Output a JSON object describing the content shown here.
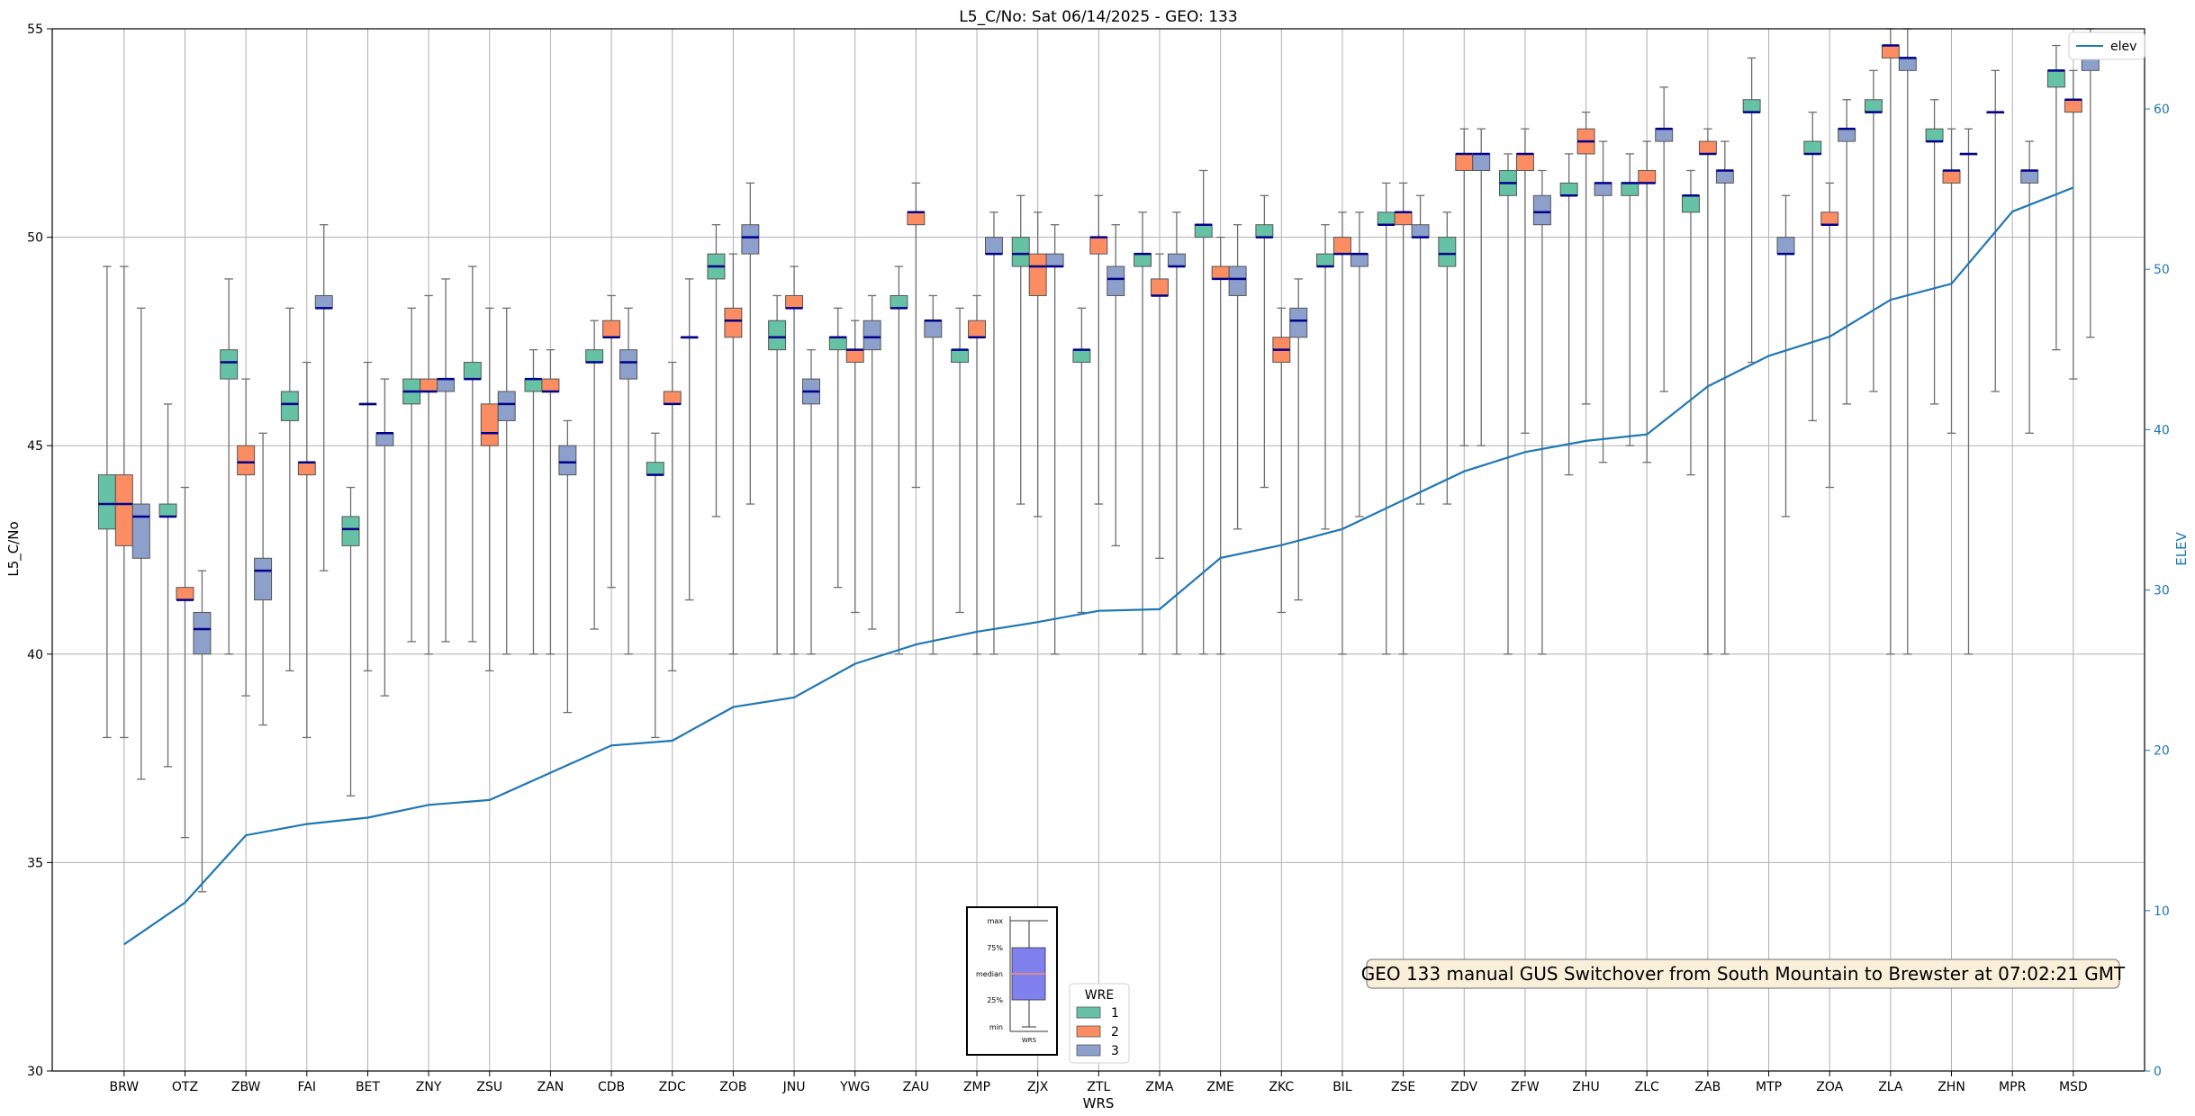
{
  "chart_data": {
    "type": "box",
    "title": "L5_C/No: Sat 06/14/2025 - GEO: 133",
    "xlabel": "WRS",
    "ylabel": "L5_C/No",
    "y2label": "ELEV",
    "ylim": [
      30,
      55
    ],
    "y2lim": [
      0,
      65
    ],
    "yticks": [
      30,
      35,
      40,
      45,
      50,
      55
    ],
    "y2ticks": [
      0,
      10,
      20,
      30,
      40,
      50,
      60
    ],
    "grid": true,
    "categories": [
      "BRW",
      "OTZ",
      "ZBW",
      "FAI",
      "BET",
      "ZNY",
      "ZSU",
      "ZAN",
      "CDB",
      "ZDC",
      "ZOB",
      "JNU",
      "YWG",
      "ZAU",
      "ZMP",
      "ZJX",
      "ZTL",
      "ZMA",
      "ZME",
      "ZKC",
      "BIL",
      "ZSE",
      "ZDV",
      "ZFW",
      "ZHU",
      "ZLC",
      "ZAB",
      "MTP",
      "ZOA",
      "ZLA",
      "ZHN",
      "MPR",
      "MSD"
    ],
    "colors": {
      "1": "#66c2a5",
      "2": "#fc8d62",
      "3": "#8da0cb",
      "median": "#00008b",
      "elev": "#1f77b4",
      "grid": "#b0b0b0",
      "whisker": "#6e6e6e"
    },
    "legend": {
      "title": "WRE",
      "entries": [
        "1",
        "2",
        "3"
      ],
      "placement": "bottom-center"
    },
    "elev_legend": {
      "label": "elev",
      "placement": "top-right"
    },
    "series": [
      {
        "wre": "1",
        "boxes": [
          {
            "cat": "BRW",
            "whislo": 38,
            "q1": 43,
            "med": 43.6,
            "q3": 44.3,
            "whishi": 49.3
          },
          {
            "cat": "OTZ",
            "whislo": 37.3,
            "q1": 43.3,
            "med": 43.3,
            "q3": 43.6,
            "whishi": 46
          },
          {
            "cat": "ZBW",
            "whislo": 40,
            "q1": 46.6,
            "med": 47,
            "q3": 47.3,
            "whishi": 49
          },
          {
            "cat": "FAI",
            "whislo": 39.6,
            "q1": 45.6,
            "med": 46,
            "q3": 46.3,
            "whishi": 48.3
          },
          {
            "cat": "BET",
            "whislo": 36.6,
            "q1": 42.6,
            "med": 43,
            "q3": 43.3,
            "whishi": 44
          },
          {
            "cat": "ZNY",
            "whislo": 40.3,
            "q1": 46,
            "med": 46.3,
            "q3": 46.6,
            "whishi": 48.3
          },
          {
            "cat": "ZSU",
            "whislo": 40.3,
            "q1": 46.6,
            "med": 46.6,
            "q3": 47,
            "whishi": 49.3
          },
          {
            "cat": "ZAN",
            "whislo": 40,
            "q1": 46.3,
            "med": 46.6,
            "q3": 46.6,
            "whishi": 47.3
          },
          {
            "cat": "CDB",
            "whislo": 40.6,
            "q1": 47,
            "med": 47,
            "q3": 47.3,
            "whishi": 48
          },
          {
            "cat": "ZDC",
            "whislo": 38,
            "q1": 44.3,
            "med": 44.3,
            "q3": 44.6,
            "whishi": 45.3
          },
          {
            "cat": "ZOB",
            "whislo": 43.3,
            "q1": 49,
            "med": 49.3,
            "q3": 49.6,
            "whishi": 50.3
          },
          {
            "cat": "JNU",
            "whislo": 40,
            "q1": 47.3,
            "med": 47.6,
            "q3": 48,
            "whishi": 48.6
          },
          {
            "cat": "YWG",
            "whislo": 41.6,
            "q1": 47.3,
            "med": 47.6,
            "q3": 47.6,
            "whishi": 48.3
          },
          {
            "cat": "ZAU",
            "whislo": 40,
            "q1": 48.3,
            "med": 48.3,
            "q3": 48.6,
            "whishi": 49.3
          },
          {
            "cat": "ZMP",
            "whislo": 41,
            "q1": 47,
            "med": 47.3,
            "q3": 47.3,
            "whishi": 48.3
          },
          {
            "cat": "ZJX",
            "whislo": 43.6,
            "q1": 49.3,
            "med": 49.6,
            "q3": 50,
            "whishi": 51
          },
          {
            "cat": "ZTL",
            "whislo": 41,
            "q1": 47,
            "med": 47.3,
            "q3": 47.3,
            "whishi": 48.3
          },
          {
            "cat": "ZMA",
            "whislo": 40,
            "q1": 49.3,
            "med": 49.6,
            "q3": 49.6,
            "whishi": 50.6
          },
          {
            "cat": "ZME",
            "whislo": 40,
            "q1": 50,
            "med": 50.3,
            "q3": 50.3,
            "whishi": 51.6
          },
          {
            "cat": "ZKC",
            "whislo": 44,
            "q1": 50,
            "med": 50,
            "q3": 50.3,
            "whishi": 51
          },
          {
            "cat": "BIL",
            "whislo": 43,
            "q1": 49.3,
            "med": 49.3,
            "q3": 49.6,
            "whishi": 50.3
          },
          {
            "cat": "ZSE",
            "whislo": 40,
            "q1": 50.3,
            "med": 50.3,
            "q3": 50.6,
            "whishi": 51.3
          },
          {
            "cat": "ZDV",
            "whislo": 43.6,
            "q1": 49.3,
            "med": 49.6,
            "q3": 50,
            "whishi": 50.6
          },
          {
            "cat": "ZFW",
            "whislo": 40,
            "q1": 51,
            "med": 51.3,
            "q3": 51.6,
            "whishi": 52
          },
          {
            "cat": "ZHU",
            "whislo": 44.3,
            "q1": 51,
            "med": 51,
            "q3": 51.3,
            "whishi": 52
          },
          {
            "cat": "ZLC",
            "whislo": 45,
            "q1": 51,
            "med": 51.3,
            "q3": 51.3,
            "whishi": 52
          },
          {
            "cat": "ZAB",
            "whislo": 44.3,
            "q1": 50.6,
            "med": 51,
            "q3": 51,
            "whishi": 51.6
          },
          {
            "cat": "MTP",
            "whislo": 47,
            "q1": 53,
            "med": 53,
            "q3": 53.3,
            "whishi": 54.3
          },
          {
            "cat": "ZOA",
            "whislo": 45.6,
            "q1": 52,
            "med": 52,
            "q3": 52.3,
            "whishi": 53
          },
          {
            "cat": "ZLA",
            "whislo": 46.3,
            "q1": 53,
            "med": 53,
            "q3": 53.3,
            "whishi": 54
          },
          {
            "cat": "ZHN",
            "whislo": 46,
            "q1": 52.3,
            "med": 52.3,
            "q3": 52.6,
            "whishi": 53.3
          },
          {
            "cat": "MPR",
            "whislo": 46.3,
            "q1": 53,
            "med": 53,
            "q3": 53,
            "whishi": 54
          },
          {
            "cat": "MSD",
            "whislo": 47.3,
            "q1": 53.6,
            "med": 54,
            "q3": 54,
            "whishi": 54.6
          }
        ]
      },
      {
        "wre": "2",
        "boxes": [
          {
            "cat": "BRW",
            "whislo": 38,
            "q1": 42.6,
            "med": 43.6,
            "q3": 44.3,
            "whishi": 49.3
          },
          {
            "cat": "OTZ",
            "whislo": 35.6,
            "q1": 41.3,
            "med": 41.3,
            "q3": 41.6,
            "whishi": 44
          },
          {
            "cat": "ZBW",
            "whislo": 39,
            "q1": 44.3,
            "med": 44.6,
            "q3": 45,
            "whishi": 46.6
          },
          {
            "cat": "FAI",
            "whislo": 38,
            "q1": 44.3,
            "med": 44.6,
            "q3": 44.6,
            "whishi": 47
          },
          {
            "cat": "BET",
            "whislo": 39.6,
            "q1": 46,
            "med": 46,
            "q3": 46,
            "whishi": 47
          },
          {
            "cat": "ZNY",
            "whislo": 40,
            "q1": 46.3,
            "med": 46.3,
            "q3": 46.6,
            "whishi": 48.6
          },
          {
            "cat": "ZSU",
            "whislo": 39.6,
            "q1": 45,
            "med": 45.3,
            "q3": 46,
            "whishi": 48.3
          },
          {
            "cat": "ZAN",
            "whislo": 40,
            "q1": 46.3,
            "med": 46.3,
            "q3": 46.6,
            "whishi": 47.3
          },
          {
            "cat": "CDB",
            "whislo": 41.6,
            "q1": 47.6,
            "med": 47.6,
            "q3": 48,
            "whishi": 48.6
          },
          {
            "cat": "ZDC",
            "whislo": 39.6,
            "q1": 46,
            "med": 46,
            "q3": 46.3,
            "whishi": 47
          },
          {
            "cat": "ZOB",
            "whislo": 40,
            "q1": 47.6,
            "med": 48,
            "q3": 48.3,
            "whishi": 49.6
          },
          {
            "cat": "JNU",
            "whislo": 40,
            "q1": 48.3,
            "med": 48.3,
            "q3": 48.6,
            "whishi": 49.3
          },
          {
            "cat": "YWG",
            "whislo": 41,
            "q1": 47,
            "med": 47.3,
            "q3": 47.3,
            "whishi": 48
          },
          {
            "cat": "ZAU",
            "whislo": 44,
            "q1": 50.3,
            "med": 50.6,
            "q3": 50.6,
            "whishi": 51.3
          },
          {
            "cat": "ZMP",
            "whislo": 40,
            "q1": 47.6,
            "med": 47.6,
            "q3": 48,
            "whishi": 48.6
          },
          {
            "cat": "ZJX",
            "whislo": 43.3,
            "q1": 48.6,
            "med": 49.3,
            "q3": 49.6,
            "whishi": 50.6
          },
          {
            "cat": "ZTL",
            "whislo": 43.6,
            "q1": 49.6,
            "med": 50,
            "q3": 50,
            "whishi": 51
          },
          {
            "cat": "ZMA",
            "whislo": 42.3,
            "q1": 48.6,
            "med": 48.6,
            "q3": 49,
            "whishi": 49.6
          },
          {
            "cat": "ZME",
            "whislo": 40,
            "q1": 49,
            "med": 49,
            "q3": 49.3,
            "whishi": 50
          },
          {
            "cat": "ZKC",
            "whislo": 41,
            "q1": 47,
            "med": 47.3,
            "q3": 47.6,
            "whishi": 48.3
          },
          {
            "cat": "BIL",
            "whislo": 40,
            "q1": 49.6,
            "med": 49.6,
            "q3": 50,
            "whishi": 50.6
          },
          {
            "cat": "ZSE",
            "whislo": 40,
            "q1": 50.3,
            "med": 50.6,
            "q3": 50.6,
            "whishi": 51.3
          },
          {
            "cat": "ZDV",
            "whislo": 45,
            "q1": 51.6,
            "med": 52,
            "q3": 52,
            "whishi": 52.6
          },
          {
            "cat": "ZFW",
            "whislo": 45.3,
            "q1": 51.6,
            "med": 52,
            "q3": 52,
            "whishi": 52.6
          },
          {
            "cat": "ZHU",
            "whislo": 46,
            "q1": 52,
            "med": 52.3,
            "q3": 52.6,
            "whishi": 53
          },
          {
            "cat": "ZLC",
            "whislo": 44.6,
            "q1": 51.3,
            "med": 51.3,
            "q3": 51.6,
            "whishi": 52.3
          },
          {
            "cat": "ZAB",
            "whislo": 40,
            "q1": 52,
            "med": 52,
            "q3": 52.3,
            "whishi": 52.6
          },
          {
            "cat": "ZOA",
            "whislo": 44,
            "q1": 50.3,
            "med": 50.3,
            "q3": 50.6,
            "whishi": 51.3
          },
          {
            "cat": "ZLA",
            "whislo": 40,
            "q1": 54.3,
            "med": 54.6,
            "q3": 54.6,
            "whishi": 55
          },
          {
            "cat": "ZHN",
            "whislo": 45.3,
            "q1": 51.3,
            "med": 51.6,
            "q3": 51.6,
            "whishi": 52.6
          },
          {
            "cat": "MSD",
            "whislo": 46.6,
            "q1": 53,
            "med": 53.3,
            "q3": 53.3,
            "whishi": 54
          }
        ]
      },
      {
        "wre": "3",
        "boxes": [
          {
            "cat": "BRW",
            "whislo": 37,
            "q1": 42.3,
            "med": 43.3,
            "q3": 43.6,
            "whishi": 48.3
          },
          {
            "cat": "OTZ",
            "whislo": 34.3,
            "q1": 40,
            "med": 40.6,
            "q3": 41,
            "whishi": 42
          },
          {
            "cat": "ZBW",
            "whislo": 38.3,
            "q1": 41.3,
            "med": 42,
            "q3": 42.3,
            "whishi": 45.3
          },
          {
            "cat": "FAI",
            "whislo": 42,
            "q1": 48.3,
            "med": 48.3,
            "q3": 48.6,
            "whishi": 50.3
          },
          {
            "cat": "BET",
            "whislo": 39,
            "q1": 45,
            "med": 45.3,
            "q3": 45.3,
            "whishi": 46.6
          },
          {
            "cat": "ZNY",
            "whislo": 40.3,
            "q1": 46.3,
            "med": 46.6,
            "q3": 46.6,
            "whishi": 49
          },
          {
            "cat": "ZSU",
            "whislo": 40,
            "q1": 45.6,
            "med": 46,
            "q3": 46.3,
            "whishi": 48.3
          },
          {
            "cat": "ZAN",
            "whislo": 38.6,
            "q1": 44.3,
            "med": 44.6,
            "q3": 45,
            "whishi": 45.6
          },
          {
            "cat": "CDB",
            "whislo": 40,
            "q1": 46.6,
            "med": 47,
            "q3": 47.3,
            "whishi": 48.3
          },
          {
            "cat": "ZDC",
            "whislo": 41.3,
            "q1": 47.6,
            "med": 47.6,
            "q3": 47.6,
            "whishi": 49
          },
          {
            "cat": "ZOB",
            "whislo": 43.6,
            "q1": 49.6,
            "med": 50,
            "q3": 50.3,
            "whishi": 51.3
          },
          {
            "cat": "JNU",
            "whislo": 40,
            "q1": 46,
            "med": 46.3,
            "q3": 46.6,
            "whishi": 47.3
          },
          {
            "cat": "YWG",
            "whislo": 40.6,
            "q1": 47.3,
            "med": 47.6,
            "q3": 48,
            "whishi": 48.6
          },
          {
            "cat": "ZAU",
            "whislo": 40,
            "q1": 47.6,
            "med": 48,
            "q3": 48,
            "whishi": 48.6
          },
          {
            "cat": "ZMP",
            "whislo": 40,
            "q1": 49.6,
            "med": 49.6,
            "q3": 50,
            "whishi": 50.6
          },
          {
            "cat": "ZJX",
            "whislo": 40,
            "q1": 49.3,
            "med": 49.3,
            "q3": 49.6,
            "whishi": 50.3
          },
          {
            "cat": "ZTL",
            "whislo": 42.6,
            "q1": 48.6,
            "med": 49,
            "q3": 49.3,
            "whishi": 50.3
          },
          {
            "cat": "ZMA",
            "whislo": 40,
            "q1": 49.3,
            "med": 49.3,
            "q3": 49.6,
            "whishi": 50.6
          },
          {
            "cat": "ZME",
            "whislo": 43,
            "q1": 48.6,
            "med": 49,
            "q3": 49.3,
            "whishi": 50.3
          },
          {
            "cat": "ZKC",
            "whislo": 41.3,
            "q1": 47.6,
            "med": 48,
            "q3": 48.3,
            "whishi": 49
          },
          {
            "cat": "BIL",
            "whislo": 43.3,
            "q1": 49.3,
            "med": 49.6,
            "q3": 49.6,
            "whishi": 50.6
          },
          {
            "cat": "ZSE",
            "whislo": 43.6,
            "q1": 50,
            "med": 50,
            "q3": 50.3,
            "whishi": 51
          },
          {
            "cat": "ZDV",
            "whislo": 45,
            "q1": 51.6,
            "med": 52,
            "q3": 52,
            "whishi": 52.6
          },
          {
            "cat": "ZFW",
            "whislo": 40,
            "q1": 50.3,
            "med": 50.6,
            "q3": 51,
            "whishi": 51.6
          },
          {
            "cat": "ZHU",
            "whislo": 44.6,
            "q1": 51,
            "med": 51.3,
            "q3": 51.3,
            "whishi": 52.3
          },
          {
            "cat": "ZLC",
            "whislo": 46.3,
            "q1": 52.3,
            "med": 52.6,
            "q3": 52.6,
            "whishi": 53.6
          },
          {
            "cat": "ZAB",
            "whislo": 40,
            "q1": 51.3,
            "med": 51.6,
            "q3": 51.6,
            "whishi": 52.3
          },
          {
            "cat": "MTP",
            "whislo": 43.3,
            "q1": 49.6,
            "med": 49.6,
            "q3": 50,
            "whishi": 51
          },
          {
            "cat": "ZOA",
            "whislo": 46,
            "q1": 52.3,
            "med": 52.6,
            "q3": 52.6,
            "whishi": 53.3
          },
          {
            "cat": "ZLA",
            "whislo": 40,
            "q1": 54,
            "med": 54.3,
            "q3": 54.3,
            "whishi": 55
          },
          {
            "cat": "ZHN",
            "whislo": 40,
            "q1": 52,
            "med": 52,
            "q3": 52,
            "whishi": 52.6
          },
          {
            "cat": "MPR",
            "whislo": 45.3,
            "q1": 51.3,
            "med": 51.6,
            "q3": 51.6,
            "whishi": 52.3
          },
          {
            "cat": "MSD",
            "whislo": 47.6,
            "q1": 54,
            "med": 54.3,
            "q3": 54.3,
            "whishi": 55
          }
        ]
      }
    ],
    "elev_series": {
      "name": "elev",
      "values": [
        7.9,
        10.5,
        14.7,
        15.4,
        15.8,
        16.6,
        16.9,
        18.6,
        20.3,
        20.6,
        22.7,
        23.3,
        25.4,
        26.6,
        27.4,
        28.0,
        28.7,
        28.8,
        32.0,
        32.8,
        33.8,
        35.6,
        37.4,
        38.6,
        39.3,
        39.7,
        42.7,
        44.6,
        45.8,
        48.1,
        49.1,
        53.6,
        55.1
      ]
    },
    "annotation": "GEO 133 manual GUS Switchover from South Mountain to Brewster at 07:02:21 GMT",
    "inset_legend": {
      "labels": [
        "max",
        "75%",
        "median",
        "25%",
        "min"
      ],
      "xlabel": "WRS",
      "box_color": "#8080ee",
      "median_color": "#fc8d62"
    }
  }
}
